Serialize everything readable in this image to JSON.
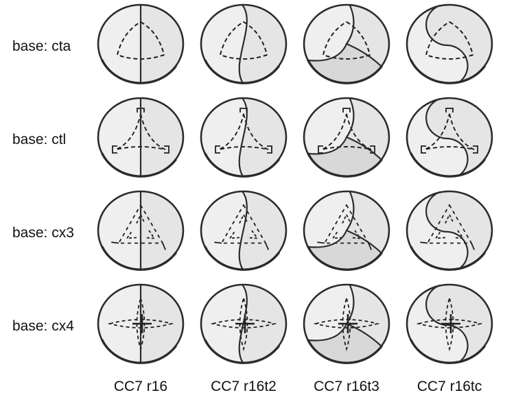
{
  "figure": {
    "rows": [
      {
        "label": "base: cta",
        "base": "cta",
        "base_shape": "rounded-triangle"
      },
      {
        "label": "base: ctl",
        "base": "ctl",
        "base_shape": "three-cusp-claw-with-hooks"
      },
      {
        "label": "base: cx3",
        "base": "cx3",
        "base_shape": "triple-branch-triangle"
      },
      {
        "label": "base: cx4",
        "base": "cx4",
        "base_shape": "four-point-star-with-cross"
      }
    ],
    "columns": [
      {
        "label": "CC7 r16",
        "curve": "vertical",
        "curve_shape": "straight-vertical-divider"
      },
      {
        "label": "CC7 r16t2",
        "curve": "s-gentle",
        "curve_shape": "gentle-s-divider"
      },
      {
        "label": "CC7 r16t3",
        "curve": "three-split",
        "curve_shape": "three-arm-pinwheel-divider"
      },
      {
        "label": "CC7 r16tc",
        "curve": "s-strong",
        "curve_shape": "yin-yang-s-divider"
      }
    ],
    "colors": {
      "background": "#ffffff",
      "circle_fill": "#efefef",
      "region_right": "#e5e5e5",
      "region_bottom": "#d8d8d8",
      "outline": "#2b2b2b",
      "dash": "#1e1e1e",
      "text": "#111111"
    }
  }
}
